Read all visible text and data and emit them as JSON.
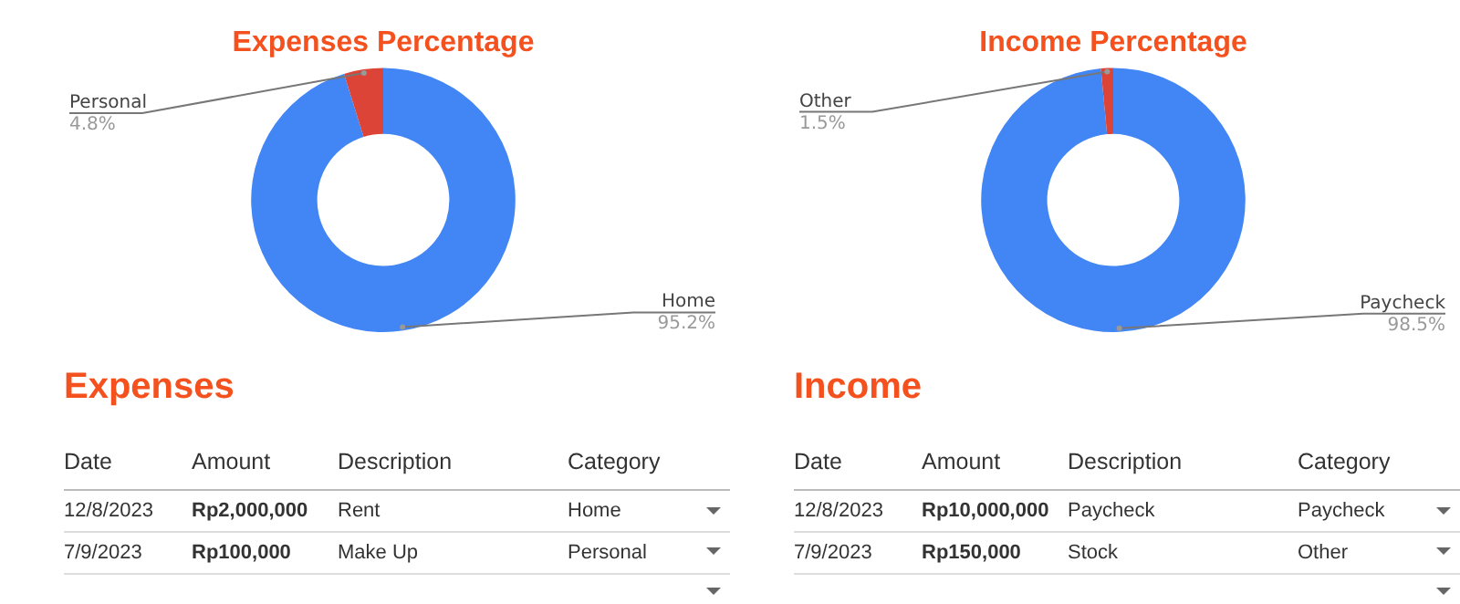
{
  "chart_data": [
    {
      "type": "donut",
      "title": "Expenses Percentage",
      "categories": [
        "Home",
        "Personal"
      ],
      "values": [
        95.2,
        4.8
      ],
      "colors": [
        "#4285f4",
        "#db4437"
      ],
      "value_labels": [
        "95.2%",
        "4.8%"
      ]
    },
    {
      "type": "donut",
      "title": "Income Percentage",
      "categories": [
        "Paycheck",
        "Other"
      ],
      "values": [
        98.5,
        1.5
      ],
      "colors": [
        "#4285f4",
        "#db4437"
      ],
      "value_labels": [
        "98.5%",
        "1.5%"
      ]
    },
    {
      "type": "other",
      "title": "Expenses",
      "annotations": [
        "Date",
        "Amount",
        "Description",
        "Category",
        "12/8/2023",
        "Rp2,000,000",
        "Rent",
        "Home",
        "7/9/2023",
        "Rp100,000",
        "Make Up",
        "Personal"
      ]
    },
    {
      "type": "other",
      "title": "Income",
      "annotations": [
        "Date",
        "Amount",
        "Description",
        "Category",
        "12/8/2023",
        "Rp10,000,000",
        "Paycheck",
        "Paycheck",
        "7/9/2023",
        "Rp150,000",
        "Stock",
        "Other"
      ]
    }
  ]
}
